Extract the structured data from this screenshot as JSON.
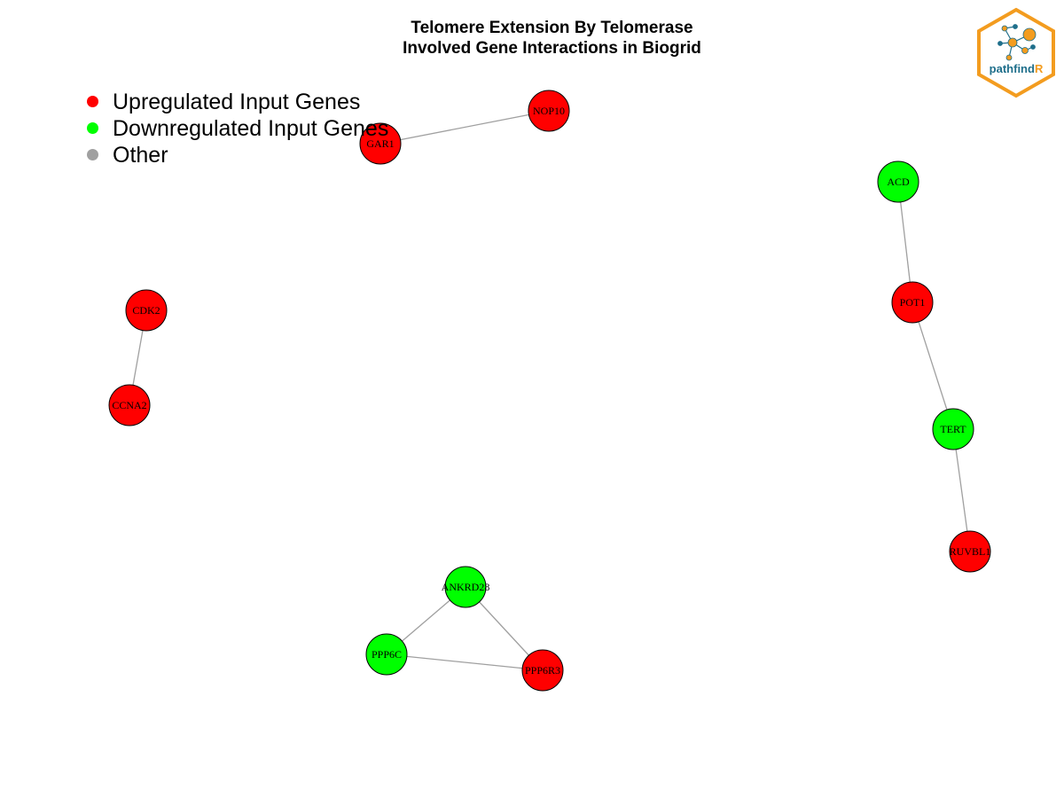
{
  "title": {
    "line1": "Telomere Extension By Telomerase",
    "line2": "Involved Gene Interactions in Biogrid"
  },
  "legend": [
    {
      "label": "Upregulated Input Genes",
      "color": "#ff0000"
    },
    {
      "label": "Downregulated Input Genes",
      "color": "#00ff00"
    },
    {
      "label": "Other",
      "color": "#a0a0a0"
    }
  ],
  "colors": {
    "upregulated": "#ff0000",
    "downregulated": "#00ff00",
    "other": "#a0a0a0",
    "edge": "#a0a0a0",
    "logo_orange": "#f39c1f",
    "logo_blue": "#1f6f8b"
  },
  "logo": {
    "text_main": "pathfind",
    "text_accent": "R"
  },
  "nodes": [
    {
      "id": "NOP10",
      "regulation": "upregulated"
    },
    {
      "id": "GAR1",
      "regulation": "upregulated"
    },
    {
      "id": "ACD",
      "regulation": "downregulated"
    },
    {
      "id": "POT1",
      "regulation": "upregulated"
    },
    {
      "id": "TERT",
      "regulation": "downregulated"
    },
    {
      "id": "RUVBL1",
      "regulation": "upregulated"
    },
    {
      "id": "CDK2",
      "regulation": "upregulated"
    },
    {
      "id": "CCNA2",
      "regulation": "upregulated"
    },
    {
      "id": "ANKRD28",
      "regulation": "downregulated"
    },
    {
      "id": "PPP6C",
      "regulation": "downregulated"
    },
    {
      "id": "PPP6R3",
      "regulation": "upregulated"
    }
  ],
  "edges": [
    [
      "GAR1",
      "NOP10"
    ],
    [
      "ACD",
      "POT1"
    ],
    [
      "POT1",
      "TERT"
    ],
    [
      "TERT",
      "RUVBL1"
    ],
    [
      "CDK2",
      "CCNA2"
    ],
    [
      "ANKRD28",
      "PPP6C"
    ],
    [
      "ANKRD28",
      "PPP6R3"
    ],
    [
      "PPP6C",
      "PPP6R3"
    ]
  ]
}
